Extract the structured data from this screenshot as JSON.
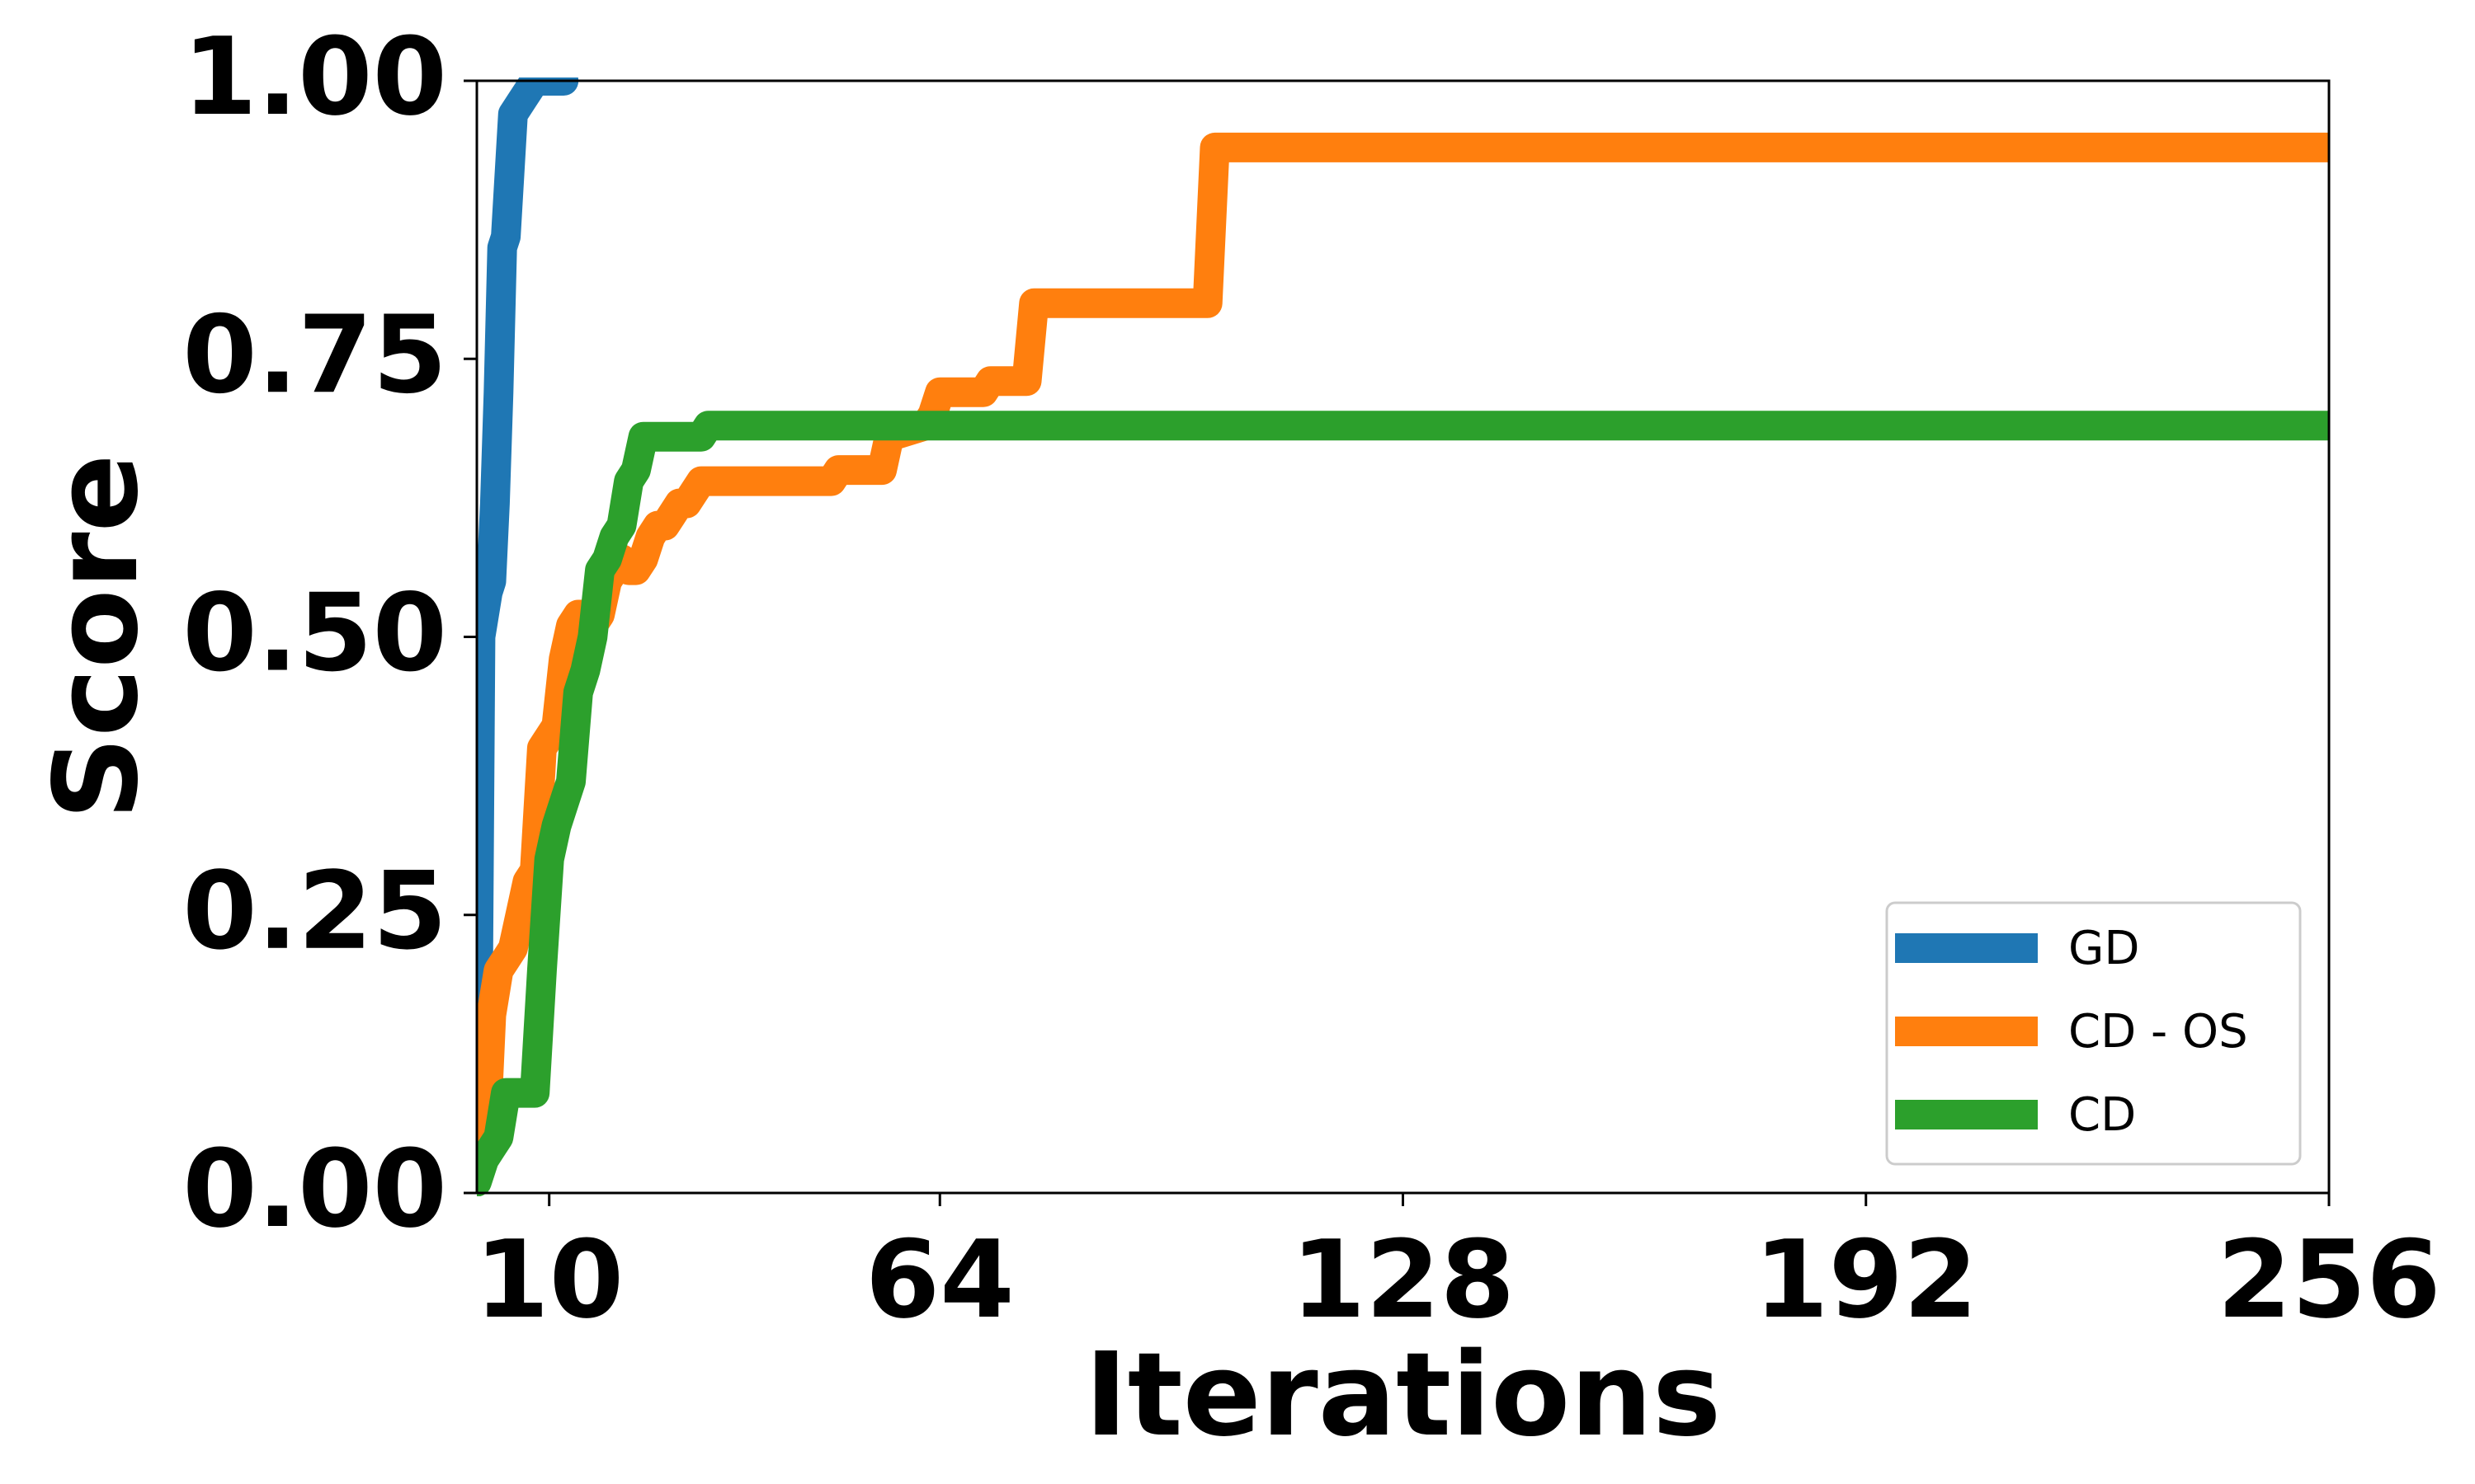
{
  "chart_data": {
    "type": "line",
    "title": "",
    "xlabel": "Iterations",
    "ylabel": "Score",
    "xlim": [
      0,
      256
    ],
    "ylim": [
      0,
      1.0
    ],
    "xticks": [
      10,
      64,
      128,
      192,
      256
    ],
    "xtick_labels": [
      "10",
      "64",
      "128",
      "192",
      "256"
    ],
    "yticks": [
      0,
      0.25,
      0.5,
      0.75,
      1.0
    ],
    "ytick_labels": [
      "0.00",
      "0.25",
      "0.50",
      "0.75",
      "1.00"
    ],
    "grid": false,
    "legend_position": "bottom-right",
    "series": [
      {
        "name": "GD",
        "color": "#1f77b4",
        "x": [
          0,
          0.5,
          1,
          1.5,
          2,
          2.5,
          3,
          3.5,
          4,
          5,
          6,
          7,
          8,
          9,
          10,
          11,
          12
        ],
        "y": [
          0.03,
          0.5,
          0.52,
          0.54,
          0.55,
          0.62,
          0.72,
          0.85,
          0.86,
          0.97,
          0.98,
          0.99,
          1.0,
          1.0,
          1.0,
          1.0,
          1.0
        ]
      },
      {
        "name": "CD - OS",
        "color": "#ff7f0e",
        "x": [
          0,
          1,
          1.5,
          2,
          3,
          4,
          5,
          6,
          7,
          8,
          9,
          10,
          11,
          12,
          13,
          14,
          15,
          16,
          17,
          18,
          19,
          20,
          21,
          22,
          23,
          24,
          25,
          26,
          27,
          28,
          29,
          30,
          31,
          33,
          34,
          35,
          48,
          49,
          50,
          55,
          56,
          57,
          62,
          63,
          64,
          65,
          66,
          67,
          68,
          69,
          70,
          71,
          76,
          77,
          100,
          101,
          102,
          103,
          256
        ],
        "y": [
          0.02,
          0.06,
          0.09,
          0.16,
          0.2,
          0.21,
          0.22,
          0.25,
          0.28,
          0.29,
          0.4,
          0.41,
          0.42,
          0.48,
          0.51,
          0.52,
          0.52,
          0.51,
          0.52,
          0.55,
          0.56,
          0.57,
          0.56,
          0.56,
          0.57,
          0.59,
          0.6,
          0.6,
          0.61,
          0.62,
          0.62,
          0.63,
          0.64,
          0.64,
          0.64,
          0.64,
          0.64,
          0.64,
          0.65,
          0.65,
          0.65,
          0.68,
          0.69,
          0.7,
          0.72,
          0.72,
          0.72,
          0.72,
          0.72,
          0.72,
          0.72,
          0.73,
          0.73,
          0.8,
          0.8,
          0.8,
          0.94,
          0.94,
          0.94
        ],
        "y_note": ""
      },
      {
        "name": "CD",
        "color": "#2ca02c",
        "x": [
          0,
          1,
          2,
          3,
          4,
          5,
          6,
          7,
          8,
          9,
          10,
          11,
          12,
          13,
          14,
          15,
          16,
          17,
          18,
          19,
          20,
          21,
          22,
          23,
          24,
          31,
          32,
          33,
          256
        ],
        "y": [
          0.01,
          0.03,
          0.04,
          0.05,
          0.09,
          0.09,
          0.09,
          0.09,
          0.09,
          0.2,
          0.3,
          0.33,
          0.35,
          0.37,
          0.45,
          0.47,
          0.5,
          0.56,
          0.57,
          0.59,
          0.6,
          0.64,
          0.65,
          0.68,
          0.68,
          0.68,
          0.69,
          0.69,
          0.69
        ]
      }
    ]
  }
}
